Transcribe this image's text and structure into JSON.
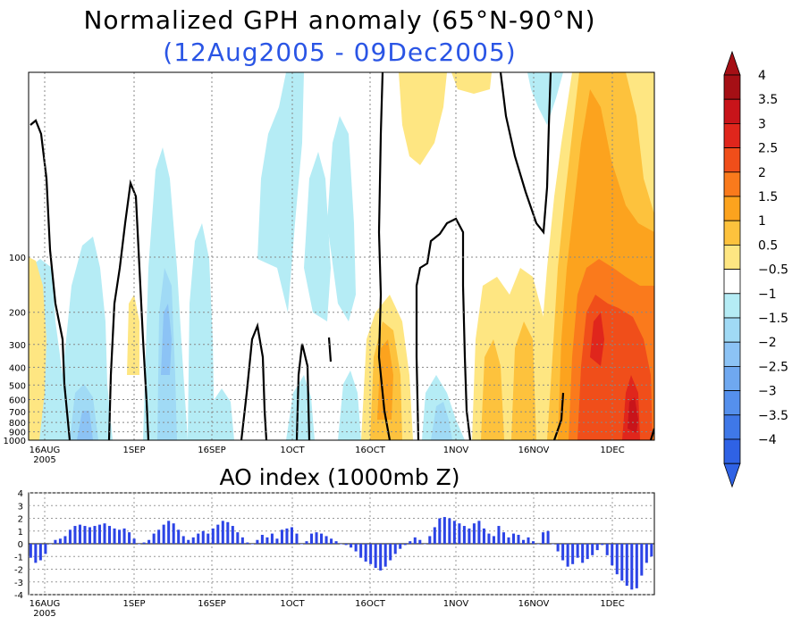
{
  "chart_data": [
    {
      "type": "heatmap",
      "title": "Normalized GPH anomaly (65°N-90°N)",
      "subtitle": "(12Aug2005 - 09Dec2005)",
      "ylabel": "",
      "yscale": "log",
      "y_ticks": [
        "100",
        "200",
        "300",
        "400",
        "500",
        "600",
        "700",
        "800",
        "900",
        "1000"
      ],
      "x_ticks": [
        "16AUG",
        "1SEP",
        "16SEP",
        "1OCT",
        "16OCT",
        "1NOV",
        "16NOV",
        "1DEC"
      ],
      "x_year": "2005",
      "colorbar": {
        "levels": [
          "4",
          "3.5",
          "3",
          "2.5",
          "2",
          "1.5",
          "1",
          "0.5",
          "-0.5",
          "-1",
          "-1.5",
          "-2",
          "-2.5",
          "-3",
          "-3.5",
          "-4"
        ],
        "colors": [
          "#a50f15",
          "#c8141a",
          "#e0261c",
          "#f04e1a",
          "#fa7a1c",
          "#fca31e",
          "#fdc23d",
          "#fee682",
          "#ffffff",
          "#b5ecf5",
          "#a0daf5",
          "#8cc3f5",
          "#6fa8f0",
          "#5590ed",
          "#3f78e8",
          "#2f62e5"
        ],
        "tip_colors": [
          "#a50f15",
          "#2f62e5"
        ]
      }
    },
    {
      "type": "bar",
      "title": "AO index (1000mb Z)",
      "x_ticks": [
        "16AUG",
        "1SEP",
        "16SEP",
        "1OCT",
        "16OCT",
        "1NOV",
        "16NOV",
        "1DEC"
      ],
      "x_year": "2005",
      "y_ticks": [
        "4",
        "3",
        "2",
        "1",
        "0",
        "-1",
        "-2",
        "-3",
        "-4"
      ],
      "ylim": [
        -4,
        4
      ],
      "bar_color": "#2c44e6",
      "values": [
        -1.1,
        -1.5,
        -1.3,
        -0.8,
        0,
        0.3,
        0.4,
        0.6,
        1.1,
        1.4,
        1.5,
        1.4,
        1.3,
        1.4,
        1.5,
        1.6,
        1.4,
        1.2,
        1.1,
        1.2,
        0.9,
        0.4,
        0,
        0.1,
        0.3,
        0.8,
        1.1,
        1.5,
        1.8,
        1.6,
        1.1,
        0.6,
        0.3,
        0.5,
        0.8,
        1,
        0.8,
        1.2,
        1.5,
        1.8,
        1.7,
        1.4,
        0.9,
        0.5,
        0.1,
        0,
        0.3,
        0.7,
        0.5,
        0.8,
        0.4,
        1.1,
        1.2,
        1.3,
        0.8,
        0,
        0.2,
        0.8,
        0.9,
        0.8,
        0.6,
        0.4,
        0.2,
        0,
        -0.1,
        -0.3,
        -0.6,
        -1.1,
        -1.4,
        -1.6,
        -1.9,
        -2.1,
        -1.8,
        -1.3,
        -0.8,
        -0.4,
        -0.1,
        0.2,
        0.5,
        0.3,
        0,
        0.6,
        1.3,
        2,
        2.1,
        2,
        1.8,
        1.6,
        1.4,
        1.2,
        1.6,
        1.8,
        1.2,
        0.8,
        0.6,
        1.4,
        0.9,
        0.5,
        0.8,
        0.7,
        0.3,
        0.5,
        0.2,
        0,
        0.9,
        1,
        0,
        -0.6,
        -1.3,
        -1.8,
        -1.6,
        -1.1,
        -1.5,
        -1.2,
        -0.9,
        -0.5,
        -0.1,
        -0.9,
        -1.7,
        -2.4,
        -2.9,
        -3.3,
        -3.6,
        -3.5,
        -2.5,
        -1.5,
        -1
      ]
    }
  ]
}
